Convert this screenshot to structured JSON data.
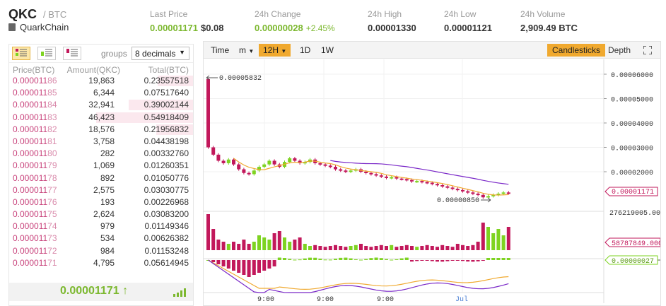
{
  "header": {
    "symbol": "QKC",
    "pair": "/ BTC",
    "coin_name": "QuarkChain",
    "stats": [
      {
        "label": "Last Price",
        "value": "0.00001171",
        "sub": "$0.08",
        "green": true
      },
      {
        "label": "24h Change",
        "value": "0.00000028",
        "sub": "+2.45%",
        "green": true
      },
      {
        "label": "24h High",
        "value": "0.00001330",
        "sub": "",
        "green": false
      },
      {
        "label": "24h Low",
        "value": "0.00001121",
        "sub": "",
        "green": false
      },
      {
        "label": "24h Volume",
        "value": "2,909.49 BTC",
        "sub": "",
        "green": false
      }
    ]
  },
  "orderbook": {
    "groups_label": "groups",
    "precision_value": "8 decimals",
    "columns": [
      "Price(BTC)",
      "Amount(QKC)",
      "Total(BTC)"
    ],
    "rows": [
      {
        "p1": "0.000011",
        "p2": "86",
        "amount": "19,863",
        "total": "0.23557518",
        "depth": 0.33
      },
      {
        "p1": "0.000011",
        "p2": "85",
        "amount": "6,344",
        "total": "0.07517640",
        "depth": 0.0
      },
      {
        "p1": "0.000011",
        "p2": "84",
        "amount": "32,941",
        "total": "0.39002144",
        "depth": 0.6
      },
      {
        "p1": "0.000011",
        "p2": "83",
        "amount": "46,423",
        "total": "0.54918409",
        "depth": 0.9
      },
      {
        "p1": "0.000011",
        "p2": "82",
        "amount": "18,576",
        "total": "0.21956832",
        "depth": 0.34
      },
      {
        "p1": "0.000011",
        "p2": "81",
        "amount": "3,758",
        "total": "0.04438198",
        "depth": 0.0
      },
      {
        "p1": "0.000011",
        "p2": "80",
        "amount": "282",
        "total": "0.00332760",
        "depth": 0.0
      },
      {
        "p1": "0.000011",
        "p2": "79",
        "amount": "1,069",
        "total": "0.01260351",
        "depth": 0.0
      },
      {
        "p1": "0.000011",
        "p2": "78",
        "amount": "892",
        "total": "0.01050776",
        "depth": 0.0
      },
      {
        "p1": "0.000011",
        "p2": "77",
        "amount": "2,575",
        "total": "0.03030775",
        "depth": 0.0
      },
      {
        "p1": "0.000011",
        "p2": "76",
        "amount": "193",
        "total": "0.00226968",
        "depth": 0.0
      },
      {
        "p1": "0.000011",
        "p2": "75",
        "amount": "2,624",
        "total": "0.03083200",
        "depth": 0.0
      },
      {
        "p1": "0.000011",
        "p2": "74",
        "amount": "979",
        "total": "0.01149346",
        "depth": 0.0
      },
      {
        "p1": "0.000011",
        "p2": "73",
        "amount": "534",
        "total": "0.00626382",
        "depth": 0.0
      },
      {
        "p1": "0.000011",
        "p2": "72",
        "amount": "984",
        "total": "0.01153248",
        "depth": 0.0
      },
      {
        "p1": "0.000011",
        "p2": "71",
        "amount": "4,795",
        "total": "0.05614945",
        "depth": 0.0
      }
    ],
    "last_price": "0.00001171",
    "last_arrow": "↑"
  },
  "toolbar": {
    "time_label": "Time",
    "minute_label": "m",
    "active_interval": "12H",
    "day_label": "1D",
    "week_label": "1W",
    "candlesticks_label": "Candlesticks",
    "depth_label": "Depth"
  },
  "chart": {
    "price_axis": [
      "0.00006000",
      "0.00005000",
      "0.00004000",
      "0.00003000",
      "0.00002000"
    ],
    "current_price_tag": "0.00001171",
    "high_annotation": "0.00005832",
    "low_annotation": "0.00000850",
    "volume_axis_top": "276219005.00",
    "volume_tag": "58787849.000",
    "macd_tag": "0.00000027",
    "x_labels": [
      "9:00",
      "9:00",
      "9:00",
      "Jul"
    ],
    "colors": {
      "up": "#7ed321",
      "down": "#c2185b",
      "ma7": "#f0a92f",
      "ma25": "#7a28c8"
    }
  }
}
